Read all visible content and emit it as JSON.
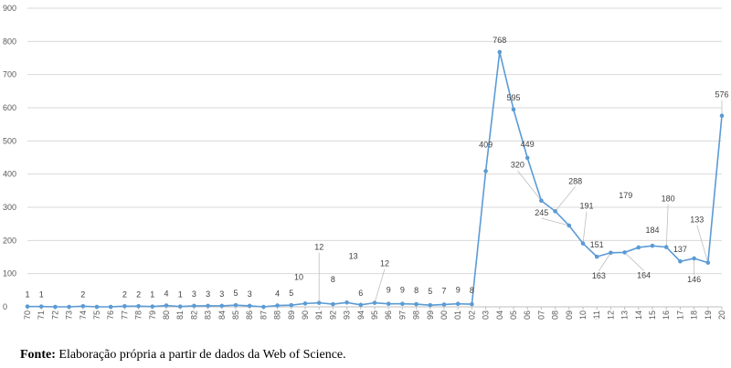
{
  "chart_data": {
    "type": "line",
    "title": "",
    "xlabel": "",
    "ylabel": "",
    "ylim": [
      0,
      900
    ],
    "yticks": [
      0,
      100,
      200,
      300,
      400,
      500,
      600,
      700,
      800,
      900
    ],
    "grid": true,
    "legend": "none",
    "color": "#5b9bd5",
    "x": [
      "1970",
      "1971",
      "1972",
      "1973",
      "1974",
      "1975",
      "1976",
      "1977",
      "1978",
      "1979",
      "1980",
      "1981",
      "1982",
      "1983",
      "1984",
      "1985",
      "1986",
      "1987",
      "1988",
      "1989",
      "1990",
      "1991",
      "1992",
      "1993",
      "1994",
      "1995",
      "1996",
      "1997",
      "1998",
      "1999",
      "2000",
      "2001",
      "2002",
      "2003",
      "2004",
      "2005",
      "2006",
      "2007",
      "2008",
      "2009",
      "2010",
      "2011",
      "2012",
      "2013",
      "2014",
      "2015",
      "2016",
      "2017",
      "2018",
      "2019",
      "2020"
    ],
    "values": [
      1,
      1,
      0,
      0,
      2,
      0,
      0,
      2,
      2,
      1,
      4,
      1,
      3,
      3,
      3,
      5,
      3,
      0,
      4,
      5,
      10,
      12,
      8,
      13,
      6,
      12,
      9,
      9,
      8,
      5,
      7,
      9,
      8,
      409,
      768,
      595,
      449,
      320,
      288,
      245,
      191,
      151,
      163,
      164,
      179,
      184,
      180,
      137,
      146,
      133,
      576
    ]
  },
  "caption": {
    "bold": "Fonte:",
    "text": " Elaboração própria a partir de dados da Web of Science."
  }
}
